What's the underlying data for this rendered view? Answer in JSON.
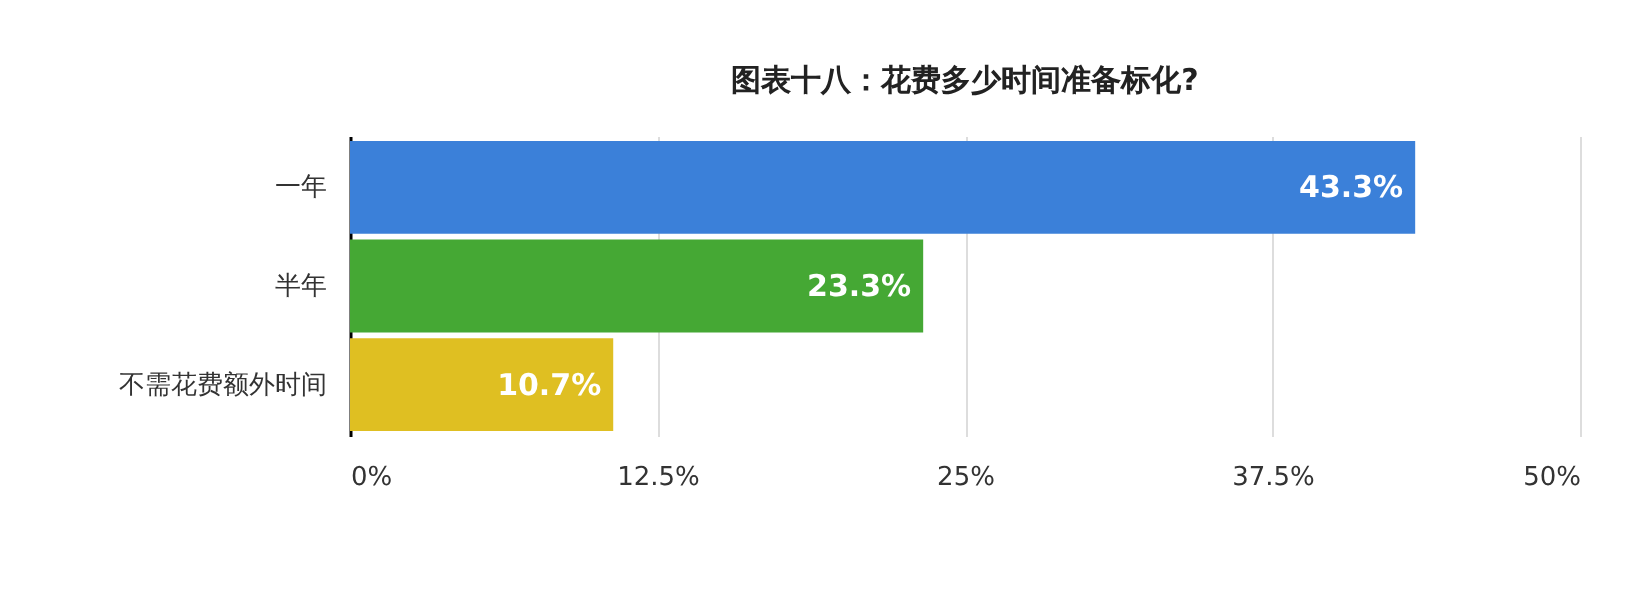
{
  "chart_data": {
    "type": "bar",
    "orientation": "horizontal",
    "title": "图表十八：花费多少时间准备标化?",
    "categories": [
      "一年",
      "半年",
      "不需花费额外时间"
    ],
    "values": [
      43.3,
      23.3,
      10.7
    ],
    "colors": [
      "#3b80d9",
      "#45a834",
      "#dfbf22"
    ],
    "value_labels": [
      "43.3%",
      "23.3%",
      "10.7%"
    ],
    "xlim": [
      0,
      50
    ],
    "xticks": [
      {
        "value": 0,
        "label": "0%"
      },
      {
        "value": 12.5,
        "label": "12.5%"
      },
      {
        "value": 25,
        "label": "25%"
      },
      {
        "value": 37.5,
        "label": "37.5%"
      },
      {
        "value": 50,
        "label": "50%"
      }
    ],
    "grid": "x",
    "legend": false
  }
}
